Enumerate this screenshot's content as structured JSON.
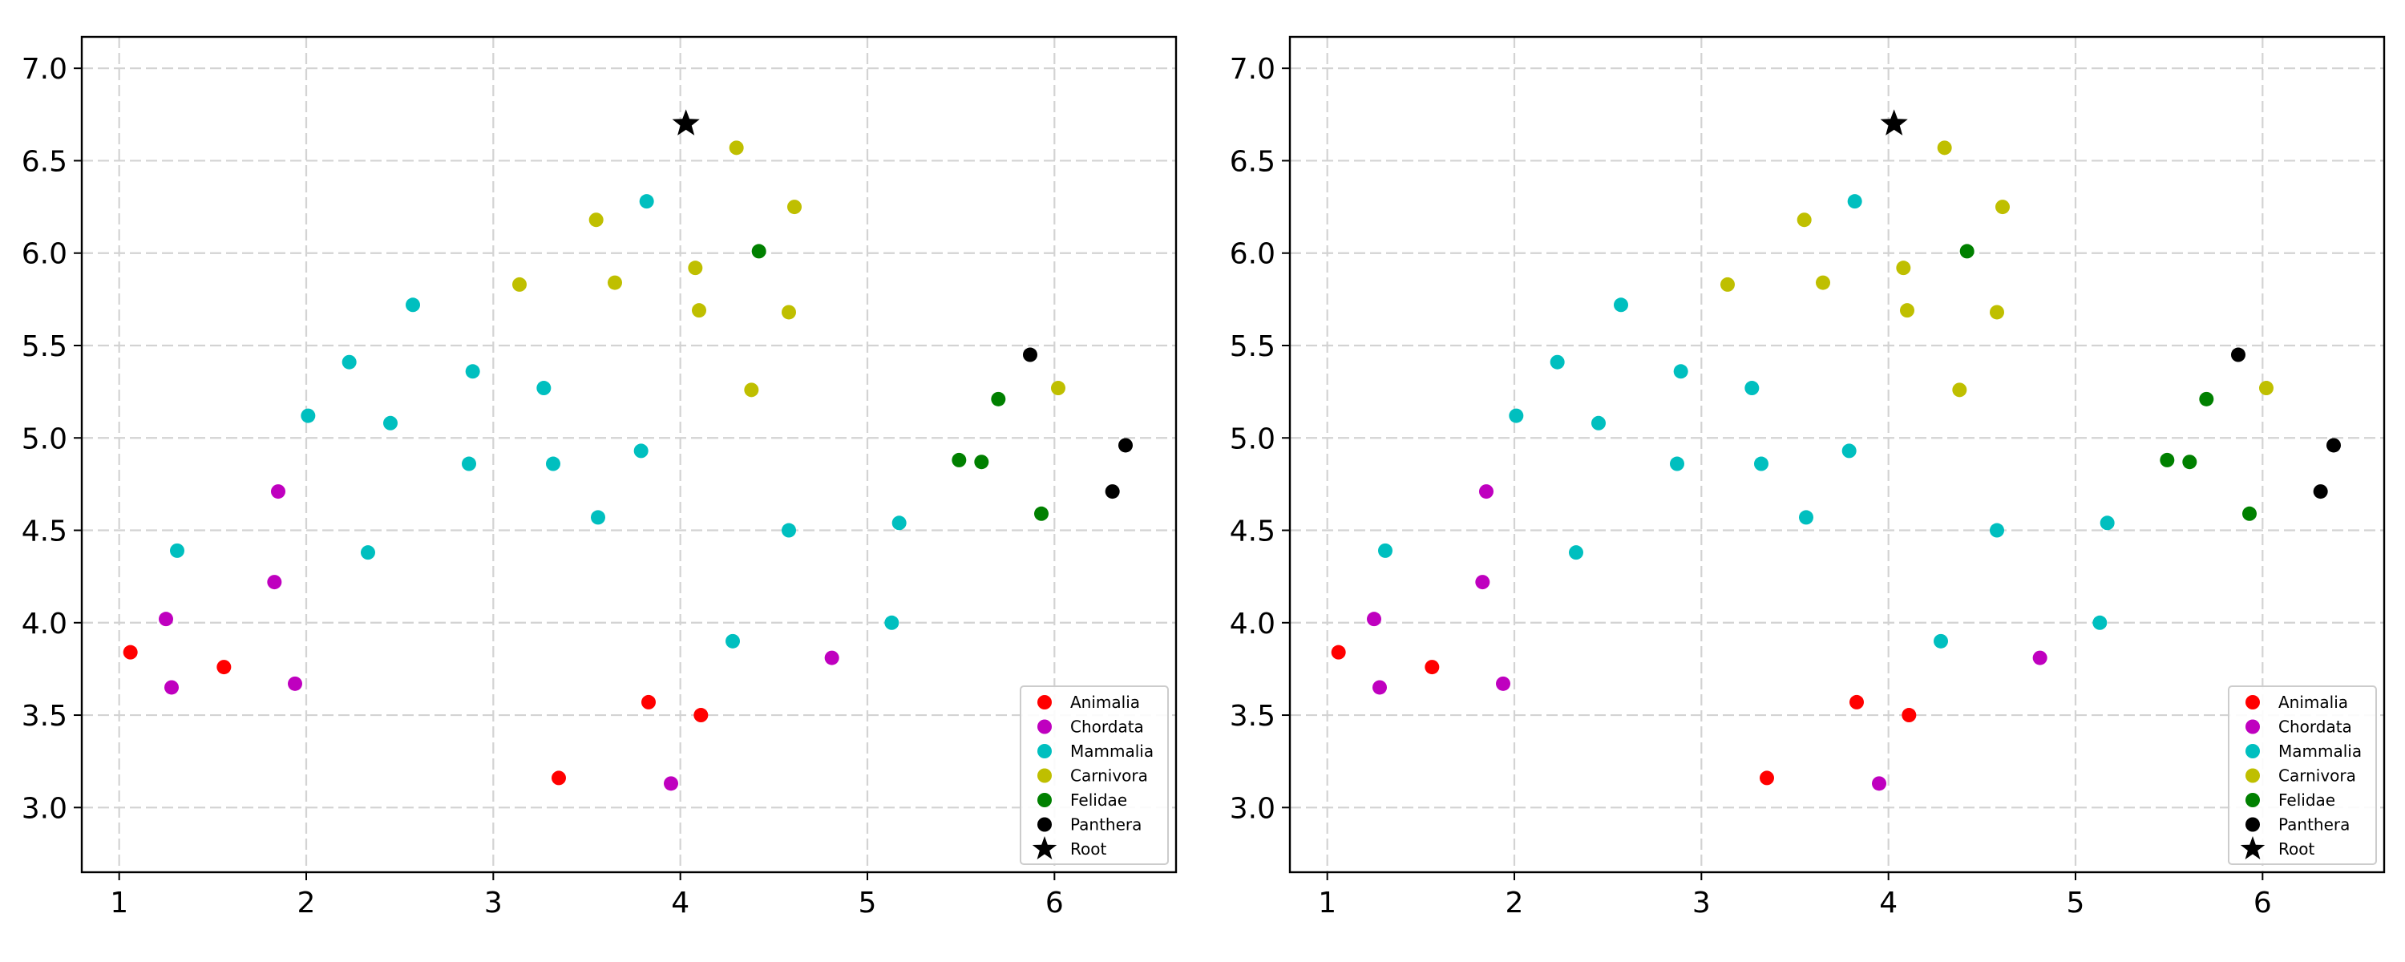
{
  "chart_data": [
    {
      "type": "scatter",
      "title": "",
      "xlabel": "",
      "ylabel": "",
      "xlim": [
        0.8,
        6.65
      ],
      "ylim": [
        2.65,
        7.17
      ],
      "x_ticks": [
        1,
        2,
        3,
        4,
        5,
        6
      ],
      "x_tick_labels": [
        "1",
        "2",
        "3",
        "4",
        "5",
        "6"
      ],
      "y_ticks": [
        3.0,
        3.5,
        4.0,
        4.5,
        5.0,
        5.5,
        6.0,
        6.5,
        7.0
      ],
      "y_tick_labels": [
        "3.0",
        "3.5",
        "4.0",
        "4.5",
        "5.0",
        "5.5",
        "6.0",
        "6.5",
        "7.0"
      ],
      "grid": true,
      "legend_position": "lower-right",
      "series": [
        {
          "name": "Animalia",
          "color": "#ff0000",
          "marker": "circle",
          "x": [
            1.06,
            1.56,
            3.35,
            3.83,
            4.11
          ],
          "y": [
            3.84,
            3.76,
            3.16,
            3.57,
            3.5
          ]
        },
        {
          "name": "Chordata",
          "color": "#bf00bf",
          "marker": "circle",
          "x": [
            1.25,
            1.28,
            1.83,
            1.85,
            1.94,
            3.95,
            4.81
          ],
          "y": [
            4.02,
            3.65,
            4.22,
            4.71,
            3.67,
            3.13,
            3.81
          ]
        },
        {
          "name": "Mammalia",
          "color": "#00bfbf",
          "marker": "circle",
          "x": [
            1.31,
            2.01,
            2.23,
            2.33,
            2.45,
            2.57,
            2.87,
            2.89,
            3.27,
            3.32,
            3.56,
            3.79,
            3.82,
            4.28,
            4.58,
            5.13,
            5.17
          ],
          "y": [
            4.39,
            5.12,
            5.41,
            4.38,
            5.08,
            5.72,
            4.86,
            5.36,
            5.27,
            4.86,
            4.57,
            4.93,
            6.28,
            3.9,
            4.5,
            4.0,
            4.54
          ]
        },
        {
          "name": "Carnivora",
          "color": "#bfbf00",
          "marker": "circle",
          "x": [
            3.14,
            3.55,
            3.65,
            4.08,
            4.1,
            4.3,
            4.38,
            4.58,
            4.61,
            6.02
          ],
          "y": [
            5.83,
            6.18,
            5.84,
            5.92,
            5.69,
            6.57,
            5.26,
            5.68,
            6.25,
            5.27
          ]
        },
        {
          "name": "Felidae",
          "color": "#008000",
          "marker": "circle",
          "x": [
            4.42,
            5.49,
            5.61,
            5.7,
            5.93
          ],
          "y": [
            6.01,
            4.88,
            4.87,
            5.21,
            4.59
          ]
        },
        {
          "name": "Panthera",
          "color": "#000000",
          "marker": "circle",
          "x": [
            5.87,
            6.31,
            6.38
          ],
          "y": [
            5.45,
            4.71,
            4.96
          ]
        },
        {
          "name": "Root",
          "color": "#000000",
          "marker": "star",
          "x": [
            4.03
          ],
          "y": [
            6.7
          ]
        }
      ]
    },
    {
      "type": "scatter",
      "title": "",
      "xlabel": "",
      "ylabel": "",
      "xlim": [
        0.8,
        6.65
      ],
      "ylim": [
        2.65,
        7.17
      ],
      "x_ticks": [
        1,
        2,
        3,
        4,
        5,
        6
      ],
      "x_tick_labels": [
        "1",
        "2",
        "3",
        "4",
        "5",
        "6"
      ],
      "y_ticks": [
        3.0,
        3.5,
        4.0,
        4.5,
        5.0,
        5.5,
        6.0,
        6.5,
        7.0
      ],
      "y_tick_labels": [
        "3.0",
        "3.5",
        "4.0",
        "4.5",
        "5.0",
        "5.5",
        "6.0",
        "6.5",
        "7.0"
      ],
      "grid": true,
      "legend_position": "lower-right",
      "series": [
        {
          "name": "Animalia",
          "color": "#ff0000",
          "marker": "circle",
          "x": [
            1.06,
            1.56,
            3.35,
            3.83,
            4.11
          ],
          "y": [
            3.84,
            3.76,
            3.16,
            3.57,
            3.5
          ]
        },
        {
          "name": "Chordata",
          "color": "#bf00bf",
          "marker": "circle",
          "x": [
            1.25,
            1.28,
            1.83,
            1.85,
            1.94,
            3.95,
            4.81
          ],
          "y": [
            4.02,
            3.65,
            4.22,
            4.71,
            3.67,
            3.13,
            3.81
          ]
        },
        {
          "name": "Mammalia",
          "color": "#00bfbf",
          "marker": "circle",
          "x": [
            1.31,
            2.01,
            2.23,
            2.33,
            2.45,
            2.57,
            2.87,
            2.89,
            3.27,
            3.32,
            3.56,
            3.79,
            3.82,
            4.28,
            4.58,
            5.13,
            5.17
          ],
          "y": [
            4.39,
            5.12,
            5.41,
            4.38,
            5.08,
            5.72,
            4.86,
            5.36,
            5.27,
            4.86,
            4.57,
            4.93,
            6.28,
            3.9,
            4.5,
            4.0,
            4.54
          ]
        },
        {
          "name": "Carnivora",
          "color": "#bfbf00",
          "marker": "circle",
          "x": [
            3.14,
            3.55,
            3.65,
            4.08,
            4.1,
            4.3,
            4.38,
            4.58,
            4.61,
            6.02
          ],
          "y": [
            5.83,
            6.18,
            5.84,
            5.92,
            5.69,
            6.57,
            5.26,
            5.68,
            6.25,
            5.27
          ]
        },
        {
          "name": "Felidae",
          "color": "#008000",
          "marker": "circle",
          "x": [
            4.42,
            5.49,
            5.61,
            5.7,
            5.93
          ],
          "y": [
            6.01,
            4.88,
            4.87,
            5.21,
            4.59
          ]
        },
        {
          "name": "Panthera",
          "color": "#000000",
          "marker": "circle",
          "x": [
            5.87,
            6.31,
            6.38
          ],
          "y": [
            5.45,
            4.71,
            4.96
          ]
        },
        {
          "name": "Root",
          "color": "#000000",
          "marker": "star",
          "x": [
            4.03
          ],
          "y": [
            6.7
          ]
        }
      ]
    }
  ]
}
